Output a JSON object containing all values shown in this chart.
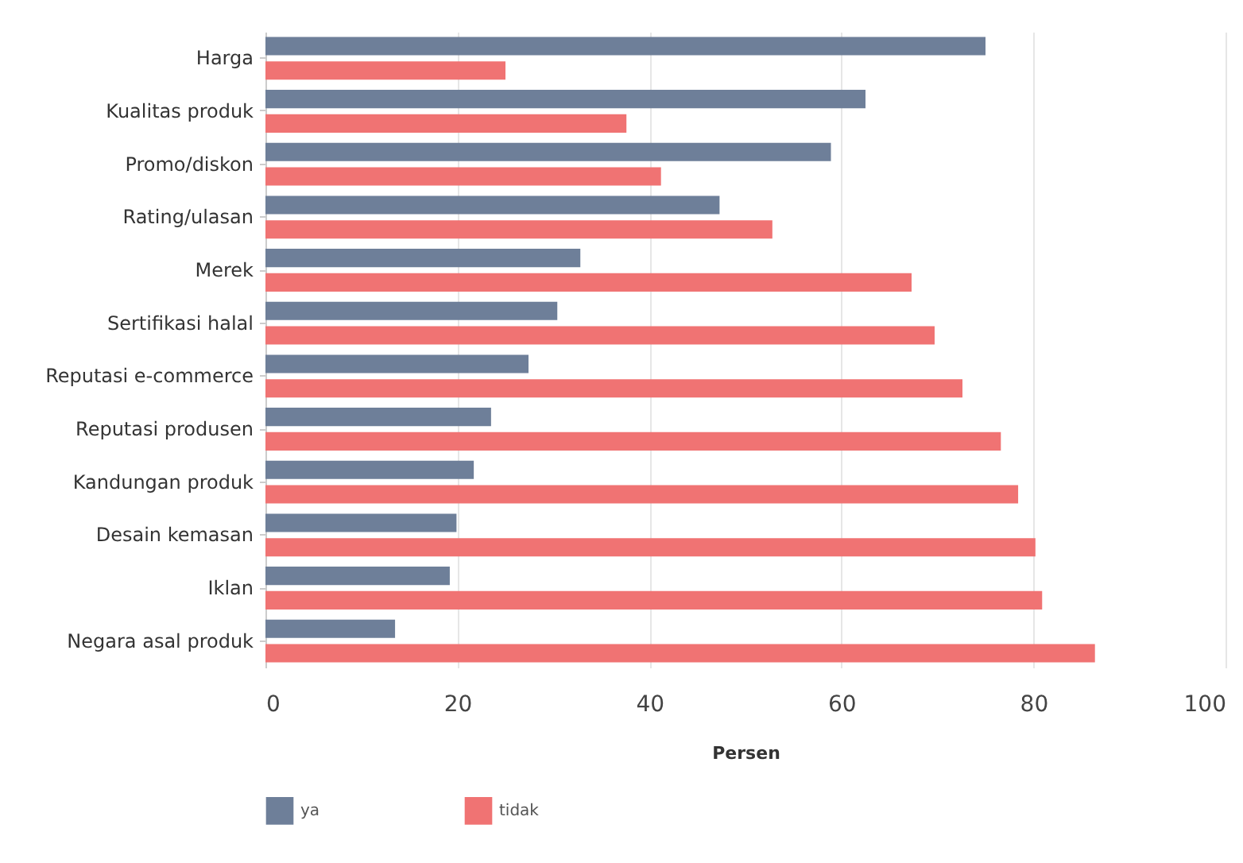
{
  "chart_data": {
    "type": "bar",
    "orientation": "horizontal",
    "xlabel": "Persen",
    "categories": [
      "Harga",
      "Kualitas produk",
      "Promo/diskon",
      "Rating/ulasan",
      "Merek",
      "Sertifikasi halal",
      "Reputasi e-commerce",
      "Reputasi produsen",
      "Kandungan produk",
      "Desain kemasan",
      "Iklan",
      "Negara asal produk"
    ],
    "series": [
      {
        "name": "ya",
        "color": "#6e7f99",
        "values": [
          75.0,
          62.5,
          58.9,
          47.3,
          32.8,
          30.4,
          27.4,
          23.5,
          21.7,
          19.9,
          19.2,
          13.5
        ]
      },
      {
        "name": "tidak",
        "color": "#f07373",
        "values": [
          25.0,
          37.6,
          41.2,
          52.8,
          67.3,
          69.7,
          72.6,
          76.6,
          78.4,
          80.2,
          80.9,
          86.4
        ]
      }
    ],
    "xlim": [
      0,
      100
    ],
    "xticks": [
      0,
      20,
      40,
      60,
      80,
      100
    ],
    "grid": "x",
    "legend": "bottom"
  }
}
